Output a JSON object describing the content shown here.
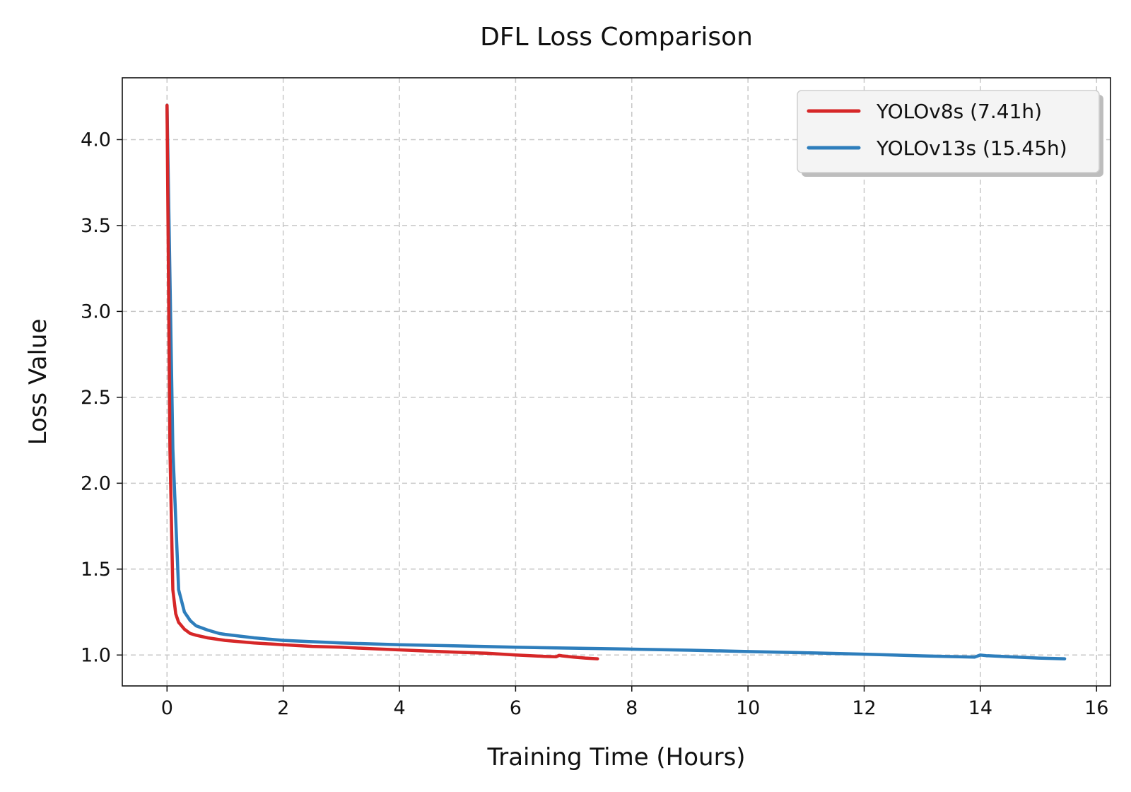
{
  "chart_data": {
    "type": "line",
    "title": "DFL Loss Comparison",
    "xlabel": "Training Time (Hours)",
    "ylabel": "Loss Value",
    "xlim": [
      -0.77,
      16.24
    ],
    "ylim": [
      0.82,
      4.36
    ],
    "xticks": [
      0,
      2,
      4,
      6,
      8,
      10,
      12,
      14,
      16
    ],
    "xtick_labels": [
      "0",
      "2",
      "4",
      "6",
      "8",
      "10",
      "12",
      "14",
      "16"
    ],
    "yticks": [
      1.0,
      1.5,
      2.0,
      2.5,
      3.0,
      3.5,
      4.0
    ],
    "ytick_labels": [
      "1.0",
      "1.5",
      "2.0",
      "2.5",
      "3.0",
      "3.5",
      "4.0"
    ],
    "grid": true,
    "legend_position": "top-right",
    "series": [
      {
        "name": "YOLOv8s (7.41h)",
        "color": "#d62728",
        "x": [
          0,
          0.05,
          0.1,
          0.15,
          0.2,
          0.3,
          0.4,
          0.5,
          0.7,
          1.0,
          1.5,
          2.0,
          2.5,
          3.0,
          3.5,
          4.0,
          4.5,
          5.0,
          5.5,
          6.0,
          6.5,
          6.7,
          6.75,
          6.8,
          7.0,
          7.2,
          7.41
        ],
        "y": [
          4.2,
          2.2,
          1.38,
          1.24,
          1.19,
          1.15,
          1.125,
          1.115,
          1.1,
          1.085,
          1.07,
          1.06,
          1.05,
          1.045,
          1.037,
          1.03,
          1.023,
          1.016,
          1.01,
          1.0,
          0.992,
          0.99,
          0.998,
          0.995,
          0.988,
          0.982,
          0.978
        ]
      },
      {
        "name": "YOLOv13s (15.45h)",
        "color": "#2e7ebc",
        "x": [
          0,
          0.1,
          0.2,
          0.3,
          0.4,
          0.5,
          0.7,
          0.9,
          1.0,
          1.5,
          2.0,
          3.0,
          4.0,
          5.0,
          6.0,
          7.0,
          8.0,
          9.0,
          10.0,
          11.0,
          12.0,
          13.0,
          13.9,
          14.0,
          14.1,
          14.5,
          15.0,
          15.45
        ],
        "y": [
          4.2,
          2.2,
          1.38,
          1.25,
          1.2,
          1.17,
          1.145,
          1.125,
          1.12,
          1.1,
          1.085,
          1.07,
          1.06,
          1.053,
          1.045,
          1.04,
          1.034,
          1.028,
          1.02,
          1.013,
          1.005,
          0.995,
          0.988,
          1.0,
          0.996,
          0.99,
          0.982,
          0.978
        ]
      }
    ]
  }
}
